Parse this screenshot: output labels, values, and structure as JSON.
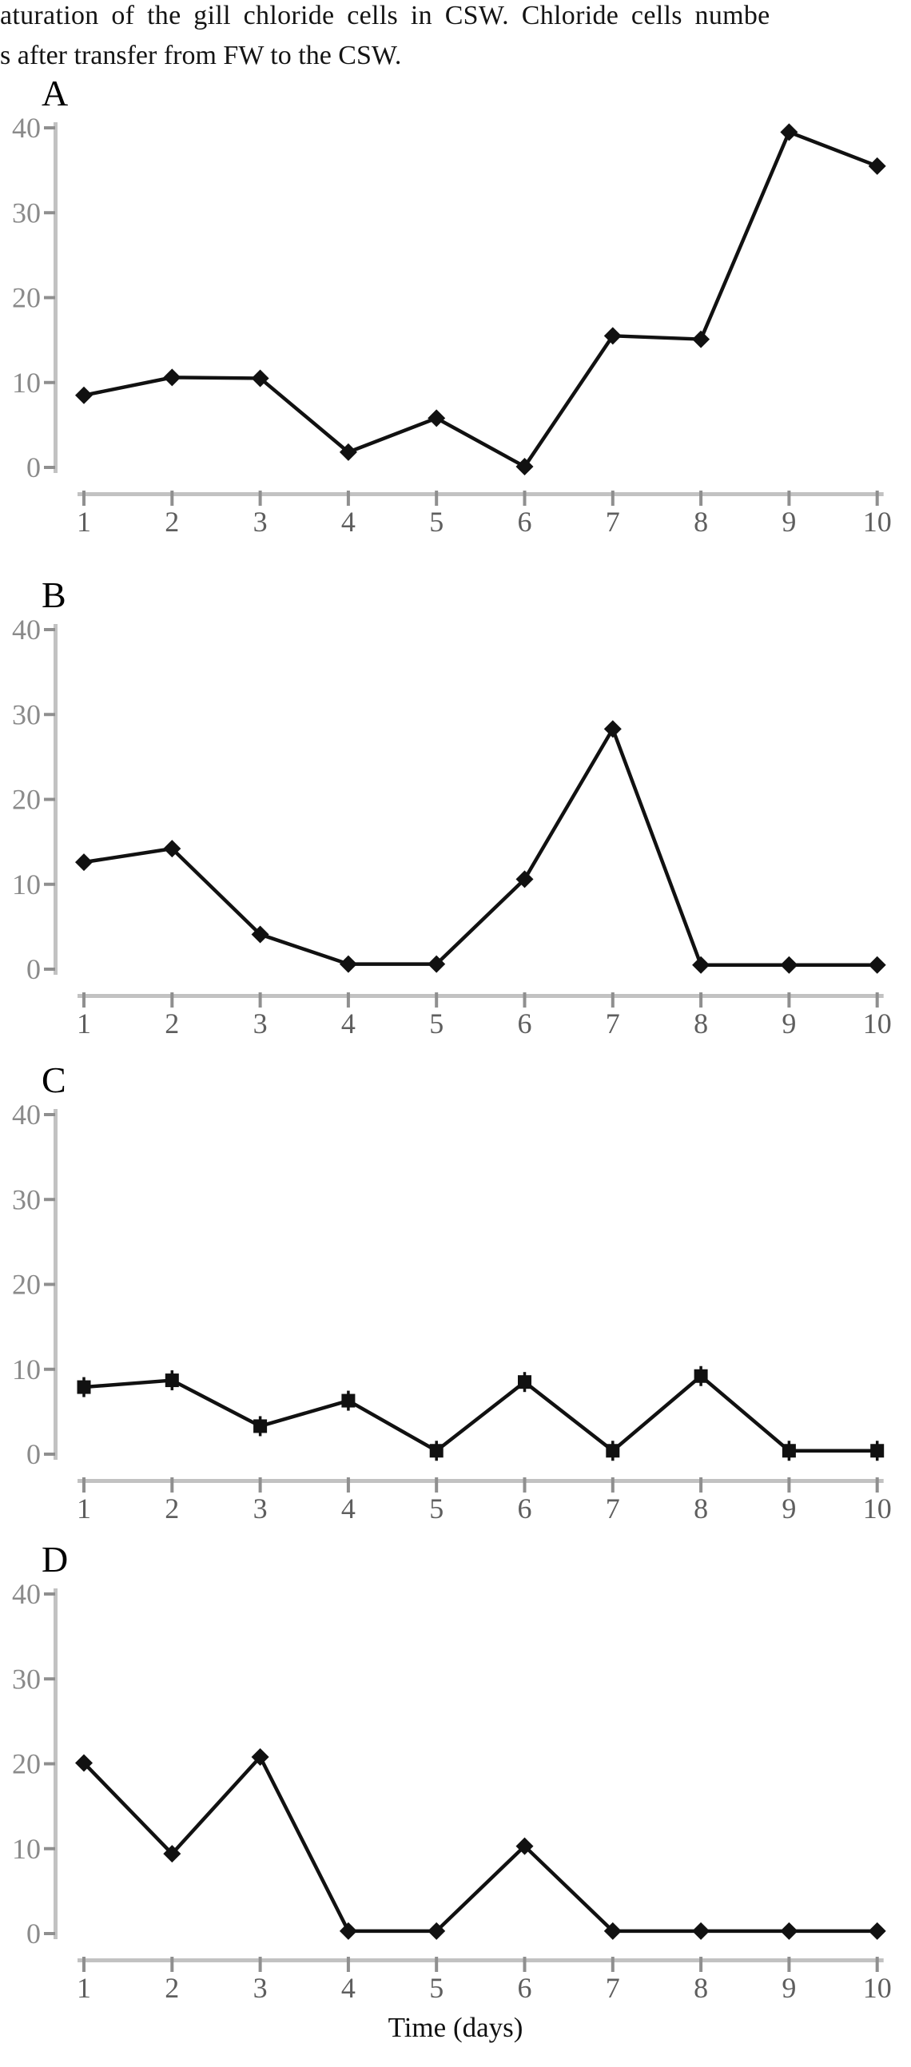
{
  "page": {
    "caption_line1": "aturation of the gill chloride cells in CSW. Chloride cells numbe",
    "caption_line2": "s after transfer from FW to the CSW.",
    "xlabel": "Time (days)"
  },
  "colors": {
    "data_line": "#111111",
    "axis_bar": "#c2c2c2",
    "tick_mark": "#8f8f8f",
    "ytick_label": "#8a8a8a",
    "xtick_label": "#5e5e5e",
    "panel_label": "#000000"
  },
  "chart_data": [
    {
      "type": "line",
      "panel_label": "A",
      "marker": "diamond",
      "x": [
        1,
        2,
        3,
        4,
        5,
        6,
        7,
        8,
        9,
        10
      ],
      "values": [
        8.5,
        10.6,
        10.5,
        1.8,
        5.8,
        0.1,
        15.5,
        15.1,
        39.5,
        35.5
      ],
      "ylim": [
        0,
        40
      ],
      "yticks": [
        0,
        10,
        20,
        30,
        40
      ],
      "xticks": [
        1,
        2,
        3,
        4,
        5,
        6,
        7,
        8,
        9,
        10
      ],
      "xlabel": "Time (days)",
      "ylabel": "",
      "grid": false,
      "legend": "none"
    },
    {
      "type": "line",
      "panel_label": "B",
      "marker": "diamond",
      "x": [
        1,
        2,
        3,
        4,
        5,
        6,
        7,
        8,
        9,
        10
      ],
      "values": [
        12.6,
        14.2,
        4.1,
        0.6,
        0.6,
        10.6,
        28.3,
        0.5,
        0.5,
        0.5
      ],
      "ylim": [
        0,
        40
      ],
      "yticks": [
        0,
        10,
        20,
        30,
        40
      ],
      "xticks": [
        1,
        2,
        3,
        4,
        5,
        6,
        7,
        8,
        9,
        10
      ],
      "xlabel": "Time (days)",
      "ylabel": "",
      "grid": false,
      "legend": "none"
    },
    {
      "type": "line",
      "panel_label": "C",
      "marker": "square-errorbar",
      "x": [
        1,
        2,
        3,
        4,
        5,
        6,
        7,
        8,
        9,
        10
      ],
      "values": [
        7.9,
        8.7,
        3.3,
        6.3,
        0.4,
        8.5,
        0.4,
        9.2,
        0.4,
        0.4
      ],
      "ylim": [
        0,
        40
      ],
      "yticks": [
        0,
        10,
        20,
        30,
        40
      ],
      "xticks": [
        1,
        2,
        3,
        4,
        5,
        6,
        7,
        8,
        9,
        10
      ],
      "xlabel": "Time (days)",
      "ylabel": "",
      "grid": false,
      "legend": "none"
    },
    {
      "type": "line",
      "panel_label": "D",
      "marker": "diamond",
      "x": [
        1,
        2,
        3,
        4,
        5,
        6,
        7,
        8,
        9,
        10
      ],
      "values": [
        20.1,
        9.4,
        20.8,
        0.3,
        0.3,
        10.3,
        0.3,
        0.3,
        0.3,
        0.3
      ],
      "ylim": [
        0,
        40
      ],
      "yticks": [
        0,
        10,
        20,
        30,
        40
      ],
      "xticks": [
        1,
        2,
        3,
        4,
        5,
        6,
        7,
        8,
        9,
        10
      ],
      "xlabel": "Time (days)",
      "ylabel": "",
      "grid": false,
      "legend": "none"
    }
  ]
}
